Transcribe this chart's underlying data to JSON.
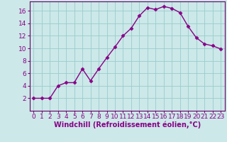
{
  "x": [
    0,
    1,
    2,
    3,
    4,
    5,
    6,
    7,
    8,
    9,
    10,
    11,
    12,
    13,
    14,
    15,
    16,
    17,
    18,
    19,
    20,
    21,
    22,
    23
  ],
  "y": [
    2,
    2,
    2,
    4,
    4.5,
    4.5,
    6.7,
    4.8,
    6.7,
    8.5,
    10.2,
    12.0,
    13.2,
    15.2,
    16.5,
    16.2,
    16.7,
    16.4,
    15.7,
    13.5,
    11.7,
    10.7,
    10.4,
    9.9
  ],
  "line_color": "#880088",
  "marker": "D",
  "marker_size": 2.5,
  "bg_color": "#cce8e8",
  "grid_color": "#99cccc",
  "xlabel": "Windchill (Refroidissement éolien,°C)",
  "xlim": [
    -0.5,
    23.5
  ],
  "ylim": [
    0,
    17.5
  ],
  "yticks": [
    2,
    4,
    6,
    8,
    10,
    12,
    14,
    16
  ],
  "xticks": [
    0,
    1,
    2,
    3,
    4,
    5,
    6,
    7,
    8,
    9,
    10,
    11,
    12,
    13,
    14,
    15,
    16,
    17,
    18,
    19,
    20,
    21,
    22,
    23
  ],
  "xlabel_fontsize": 7,
  "tick_fontsize": 6.5,
  "line_width": 1.0,
  "spine_color": "#660066"
}
